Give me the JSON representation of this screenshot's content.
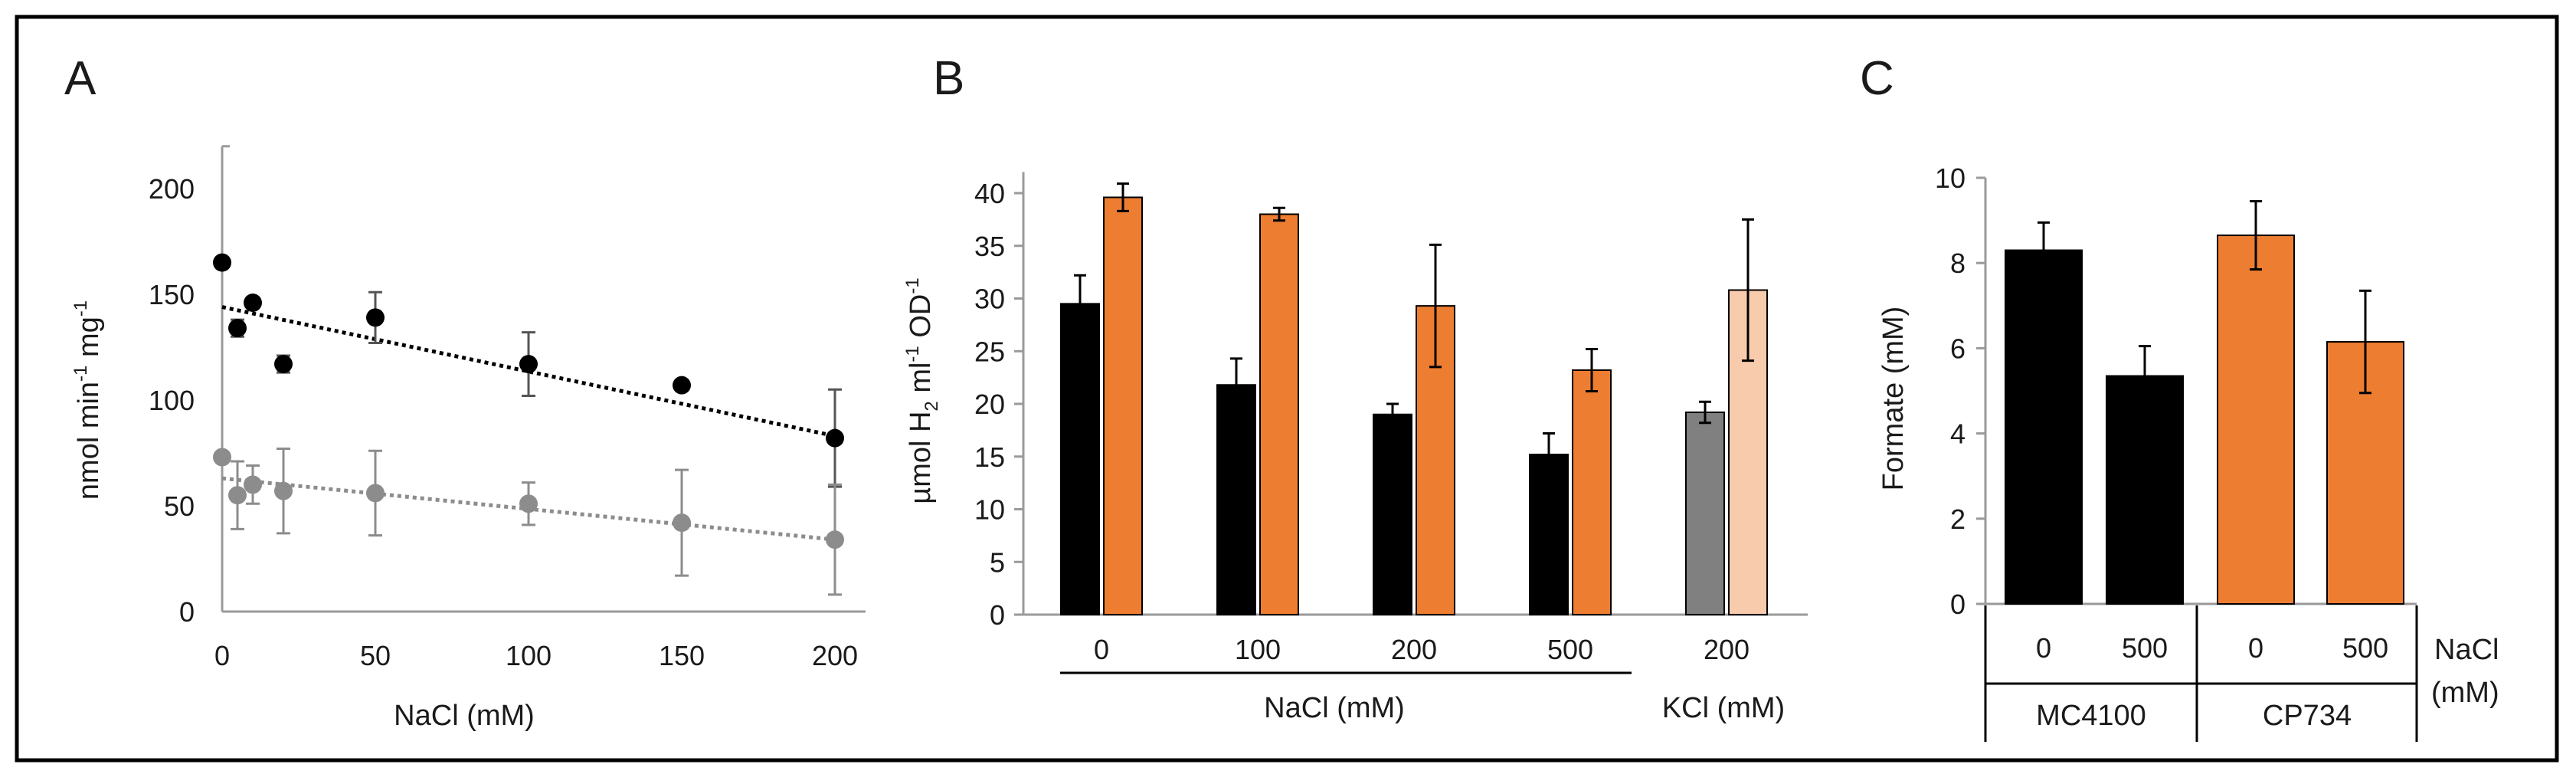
{
  "figure": {
    "panels": [
      "A",
      "B",
      "C"
    ]
  },
  "chart_data": [
    {
      "panel": "A",
      "type": "scatter",
      "xlabel": "NaCl (mM)",
      "ylabel_main": "nmol min",
      "ylabel_sup1": "-1",
      "ylabel_mid": " mg",
      "ylabel_sup2": "-1",
      "xlim": [
        0,
        210
      ],
      "ylim": [
        0,
        220
      ],
      "xticks": [
        0,
        50,
        100,
        150,
        200
      ],
      "yticks": [
        0,
        50,
        100,
        150,
        200
      ],
      "series": [
        {
          "name": "black series",
          "color": "#000000",
          "x": [
            0,
            5,
            10,
            20,
            50,
            100,
            150,
            200
          ],
          "y": [
            165,
            134,
            146,
            117,
            139,
            117,
            107,
            82
          ],
          "err": [
            0,
            4,
            0,
            4,
            12,
            15,
            0,
            23
          ],
          "trend": [
            144,
            83
          ]
        },
        {
          "name": "grey series",
          "color": "#8c8c8c",
          "x": [
            0,
            5,
            10,
            20,
            50,
            100,
            150,
            200
          ],
          "y": [
            73,
            55,
            60,
            57,
            56,
            51,
            42,
            34
          ],
          "err": [
            0,
            16,
            9,
            20,
            20,
            10,
            25,
            26
          ],
          "trend": [
            63,
            34
          ]
        }
      ]
    },
    {
      "panel": "B",
      "type": "bar",
      "ylabel_a": "µmol H",
      "ylabel_sub": "2",
      "ylabel_b": " ml",
      "ylabel_sup1": "-1",
      "ylabel_c": " OD",
      "ylabel_sup2": "-1",
      "ylim": [
        0,
        42
      ],
      "yticks": [
        0,
        5,
        10,
        15,
        20,
        25,
        30,
        35,
        40
      ],
      "categories": [
        "0",
        "100",
        "200",
        "500",
        "200"
      ],
      "group_labels": [
        "NaCl (mM)",
        "KCl (mM)"
      ],
      "series": [
        {
          "name": "dark",
          "values": [
            29.5,
            21.8,
            19.0,
            15.2,
            19.2
          ],
          "errors": [
            2.7,
            2.5,
            1.0,
            2.0,
            1.0
          ],
          "colors": [
            "#000000",
            "#000000",
            "#000000",
            "#000000",
            "#808080"
          ]
        },
        {
          "name": "light",
          "values": [
            39.6,
            38.0,
            29.3,
            23.2,
            30.8
          ],
          "errors": [
            1.3,
            0.6,
            5.8,
            2.0,
            6.7
          ],
          "colors": [
            "#ed7d31",
            "#ed7d31",
            "#ed7d31",
            "#ed7d31",
            "#f8cbad"
          ]
        }
      ]
    },
    {
      "panel": "C",
      "type": "bar",
      "ylabel": "Formate (mM)",
      "ylim": [
        0,
        10
      ],
      "yticks": [
        0,
        2,
        4,
        6,
        8,
        10
      ],
      "categories": [
        "0",
        "500",
        "0",
        "500"
      ],
      "values": [
        8.3,
        5.35,
        8.65,
        6.15
      ],
      "errors": [
        0.65,
        0.7,
        0.8,
        1.2
      ],
      "colors": [
        "#000000",
        "#000000",
        "#ed7d31",
        "#ed7d31"
      ],
      "strain_labels": [
        "MC4100",
        "CP734"
      ],
      "side_label_line1": "NaCl",
      "side_label_line2": "(mM)"
    }
  ]
}
